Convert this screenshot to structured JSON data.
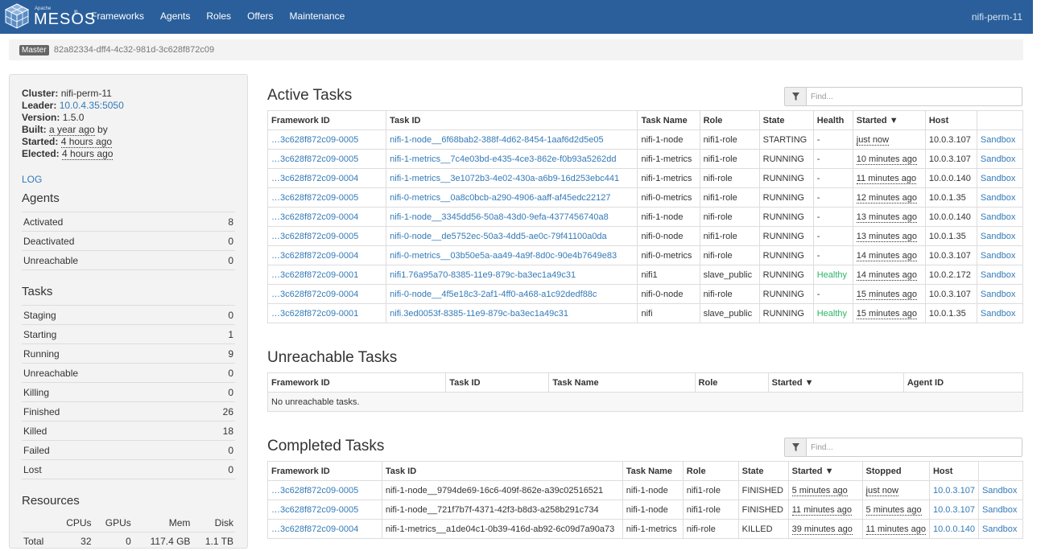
{
  "nav": {
    "logo_small": "Apache",
    "logo_text": "MESOS",
    "logo_reg": "®",
    "links": [
      "Frameworks",
      "Agents",
      "Roles",
      "Offers",
      "Maintenance"
    ],
    "cluster": "nifi-perm-11"
  },
  "master": {
    "badge": "Master",
    "id": "82a82334-dff4-4c32-981d-3c628f872c09"
  },
  "sidebar": {
    "info": [
      {
        "label": "Cluster:",
        "value": "nifi-perm-11",
        "kind": "text"
      },
      {
        "label": "Leader:",
        "value": "10.0.4.35:5050",
        "kind": "link"
      },
      {
        "label": "Version:",
        "value": "1.5.0",
        "kind": "text"
      },
      {
        "label": "Built:",
        "value": "a year ago",
        "suffix": " by",
        "kind": "dotted"
      },
      {
        "label": "Started:",
        "value": "4 hours ago",
        "kind": "dotted"
      },
      {
        "label": "Elected:",
        "value": "4 hours ago",
        "kind": "dotted"
      }
    ],
    "log": "LOG",
    "agents_title": "Agents",
    "agents": [
      {
        "label": "Activated",
        "value": "8"
      },
      {
        "label": "Deactivated",
        "value": "0"
      },
      {
        "label": "Unreachable",
        "value": "0"
      }
    ],
    "tasks_title": "Tasks",
    "tasks": [
      {
        "label": "Staging",
        "value": "0"
      },
      {
        "label": "Starting",
        "value": "1"
      },
      {
        "label": "Running",
        "value": "9"
      },
      {
        "label": "Unreachable",
        "value": "0"
      },
      {
        "label": "Killing",
        "value": "0"
      },
      {
        "label": "Finished",
        "value": "26"
      },
      {
        "label": "Killed",
        "value": "18"
      },
      {
        "label": "Failed",
        "value": "0"
      },
      {
        "label": "Lost",
        "value": "0"
      }
    ],
    "resources_title": "Resources",
    "resources_headers": [
      "",
      "CPUs",
      "GPUs",
      "Mem",
      "Disk"
    ],
    "resources_rows": [
      [
        "Total",
        "32",
        "0",
        "117.4 GB",
        "1.1 TB"
      ]
    ]
  },
  "active": {
    "title": "Active Tasks",
    "find_placeholder": "Find...",
    "headers": [
      "Framework ID",
      "Task ID",
      "Task Name",
      "Role",
      "State",
      "Health",
      "Started ▼",
      "Host",
      ""
    ],
    "rows": [
      [
        "…3c628f872c09-0005",
        "nifi-1-node__6f68bab2-388f-4d62-8454-1aaf6d2d5e05",
        "nifi-1-node",
        "nifi1-role",
        "STARTING",
        "-",
        "just now",
        "10.0.3.107",
        "Sandbox"
      ],
      [
        "…3c628f872c09-0005",
        "nifi-1-metrics__7c4e03bd-e435-4ce3-862e-f0b93a5262dd",
        "nifi-1-metrics",
        "nifi1-role",
        "RUNNING",
        "-",
        "10 minutes ago",
        "10.0.3.107",
        "Sandbox"
      ],
      [
        "…3c628f872c09-0004",
        "nifi-1-metrics__3e1072b3-4e02-430a-a6b9-16d253ebc441",
        "nifi-1-metrics",
        "nifi-role",
        "RUNNING",
        "-",
        "11 minutes ago",
        "10.0.0.140",
        "Sandbox"
      ],
      [
        "…3c628f872c09-0005",
        "nifi-0-metrics__0a8c0bcb-a290-4906-aaff-af45edc22127",
        "nifi-0-metrics",
        "nifi1-role",
        "RUNNING",
        "-",
        "12 minutes ago",
        "10.0.1.35",
        "Sandbox"
      ],
      [
        "…3c628f872c09-0004",
        "nifi-1-node__3345dd56-50a8-43d0-9efa-4377456740a8",
        "nifi-1-node",
        "nifi-role",
        "RUNNING",
        "-",
        "13 minutes ago",
        "10.0.0.140",
        "Sandbox"
      ],
      [
        "…3c628f872c09-0005",
        "nifi-0-node__de5752ec-50a3-4dd5-ae0c-79f41100a0da",
        "nifi-0-node",
        "nifi1-role",
        "RUNNING",
        "-",
        "13 minutes ago",
        "10.0.1.35",
        "Sandbox"
      ],
      [
        "…3c628f872c09-0004",
        "nifi-0-metrics__03b50e5a-aa49-4a9f-8d0c-90e4b7649e83",
        "nifi-0-metrics",
        "nifi-role",
        "RUNNING",
        "-",
        "14 minutes ago",
        "10.0.3.107",
        "Sandbox"
      ],
      [
        "…3c628f872c09-0001",
        "nifi1.76a95a70-8385-11e9-879c-ba3ec1a49c31",
        "nifi1",
        "slave_public",
        "RUNNING",
        "Healthy",
        "14 minutes ago",
        "10.0.2.172",
        "Sandbox"
      ],
      [
        "…3c628f872c09-0004",
        "nifi-0-node__4f5e18c3-2af1-4ff0-a468-a1c92dedf88c",
        "nifi-0-node",
        "nifi-role",
        "RUNNING",
        "-",
        "15 minutes ago",
        "10.0.3.107",
        "Sandbox"
      ],
      [
        "…3c628f872c09-0001",
        "nifi.3ed0053f-8385-11e9-879c-ba3ec1a49c31",
        "nifi",
        "slave_public",
        "RUNNING",
        "Healthy",
        "15 minutes ago",
        "10.0.1.35",
        "Sandbox"
      ]
    ]
  },
  "unreachable": {
    "title": "Unreachable Tasks",
    "headers": [
      "Framework ID",
      "Task ID",
      "Task Name",
      "Role",
      "Started ▼",
      "Agent ID"
    ],
    "empty": "No unreachable tasks."
  },
  "completed": {
    "title": "Completed Tasks",
    "find_placeholder": "Find...",
    "headers": [
      "Framework ID",
      "Task ID",
      "Task Name",
      "Role",
      "State",
      "Started ▼",
      "Stopped",
      "Host",
      ""
    ],
    "rows": [
      [
        "…3c628f872c09-0005",
        "nifi-1-node__9794de69-16c6-409f-862e-a39c02516521",
        "nifi-1-node",
        "nifi1-role",
        "FINISHED",
        "5 minutes ago",
        "just now",
        "10.0.3.107",
        "Sandbox"
      ],
      [
        "…3c628f872c09-0005",
        "nifi-1-node__721f7b7f-4371-42f3-b8d3-a258b291c734",
        "nifi-1-node",
        "nifi1-role",
        "FINISHED",
        "11 minutes ago",
        "5 minutes ago",
        "10.0.3.107",
        "Sandbox"
      ],
      [
        "…3c628f872c09-0004",
        "nifi-1-metrics__a1de04c1-0b39-416d-ab92-6c09d7a90a73",
        "nifi-1-metrics",
        "nifi-role",
        "KILLED",
        "39 minutes ago",
        "11 minutes ago",
        "10.0.0.140",
        "Sandbox"
      ]
    ]
  },
  "colors": {
    "navbar": "#2a5f9b",
    "link": "#337ab7",
    "healthy": "#2bb56b"
  },
  "icons": {
    "logo": "mesos-cube-icon",
    "filter": "filter-icon"
  }
}
